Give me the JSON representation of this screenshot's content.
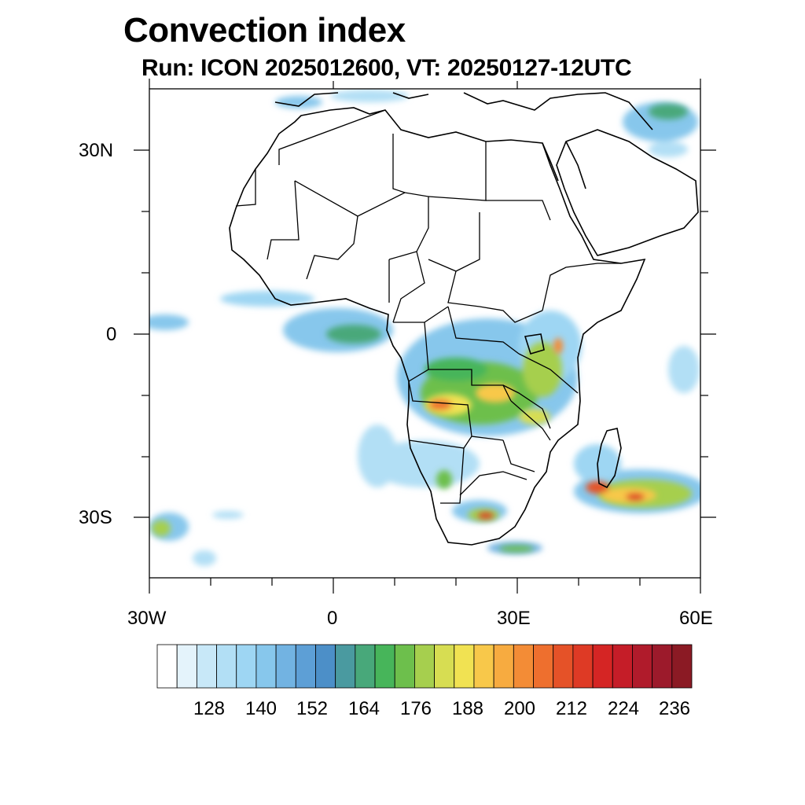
{
  "header": {
    "title": "Convection index",
    "subtitle": "Run: ICON 2025012600,  VT: 20250127-12UTC"
  },
  "map": {
    "region": "Africa",
    "projection": "cylindrical equidistant",
    "lon_range": [
      -30,
      60
    ],
    "lat_range": [
      -40,
      40
    ],
    "x_tick_labels": [
      "30W",
      "0",
      "30E",
      "60E"
    ],
    "y_tick_labels": [
      "30N",
      "0",
      "30S"
    ],
    "coastline_color": "#000000"
  },
  "colorbar": {
    "labels": [
      "128",
      "140",
      "152",
      "164",
      "176",
      "188",
      "200",
      "212",
      "224",
      "236"
    ],
    "colors": [
      "#ffffff",
      "#e4f3fb",
      "#c8e8f8",
      "#b2dff5",
      "#9ed6f3",
      "#87c7ec",
      "#72b3e2",
      "#5d9fd6",
      "#4c8fc8",
      "#4a9aa0",
      "#48a87a",
      "#47b55a",
      "#6dbf4c",
      "#a6cf4e",
      "#d7dd52",
      "#f1e252",
      "#f8c84a",
      "#f7ab40",
      "#f38c36",
      "#ee6f2e",
      "#e55228",
      "#de3a25",
      "#d52524",
      "#c51d28",
      "#b01b2b",
      "#9c1a2b",
      "#8b1a24"
    ]
  }
}
